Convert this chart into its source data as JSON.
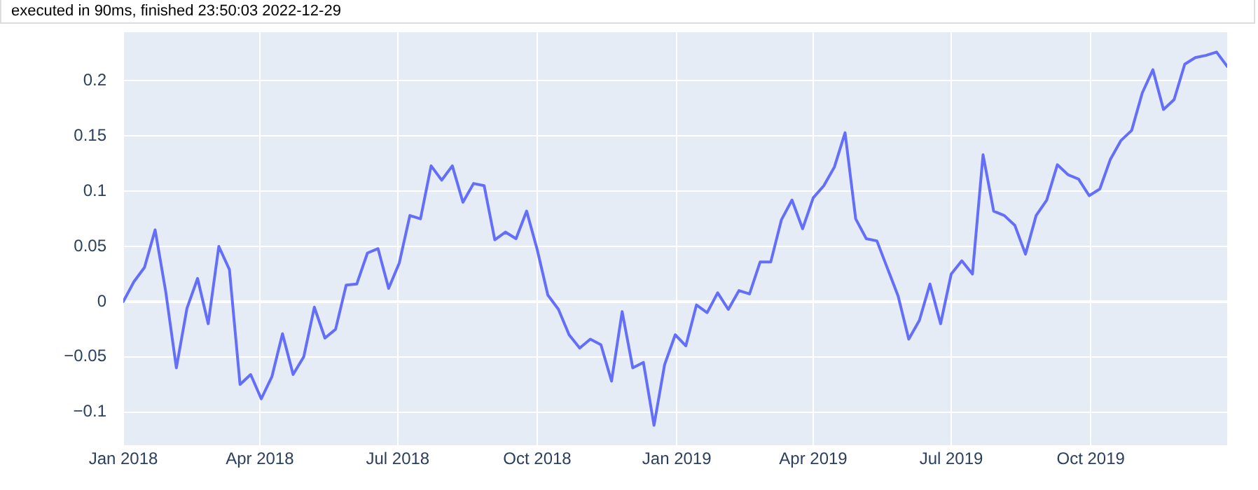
{
  "chart_data": {
    "type": "line",
    "annotations": [
      "executed in 90ms, finished 23:50:03 2022-12-29"
    ],
    "x": [
      "2018-01-01",
      "2018-01-08",
      "2018-01-15",
      "2018-01-22",
      "2018-01-29",
      "2018-02-05",
      "2018-02-12",
      "2018-02-19",
      "2018-02-26",
      "2018-03-05",
      "2018-03-12",
      "2018-03-19",
      "2018-03-26",
      "2018-04-02",
      "2018-04-09",
      "2018-04-16",
      "2018-04-23",
      "2018-04-30",
      "2018-05-07",
      "2018-05-14",
      "2018-05-21",
      "2018-05-28",
      "2018-06-04",
      "2018-06-11",
      "2018-06-18",
      "2018-06-25",
      "2018-07-02",
      "2018-07-09",
      "2018-07-16",
      "2018-07-23",
      "2018-07-30",
      "2018-08-06",
      "2018-08-13",
      "2018-08-20",
      "2018-08-27",
      "2018-09-03",
      "2018-09-10",
      "2018-09-17",
      "2018-09-24",
      "2018-10-01",
      "2018-10-08",
      "2018-10-15",
      "2018-10-22",
      "2018-10-29",
      "2018-11-05",
      "2018-11-12",
      "2018-11-19",
      "2018-11-26",
      "2018-12-03",
      "2018-12-10",
      "2018-12-17",
      "2018-12-24",
      "2018-12-31",
      "2019-01-07",
      "2019-01-14",
      "2019-01-21",
      "2019-01-28",
      "2019-02-04",
      "2019-02-11",
      "2019-02-18",
      "2019-02-25",
      "2019-03-04",
      "2019-03-11",
      "2019-03-18",
      "2019-03-25",
      "2019-04-01",
      "2019-04-08",
      "2019-04-15",
      "2019-04-22",
      "2019-04-29",
      "2019-05-06",
      "2019-05-13",
      "2019-05-20",
      "2019-05-27",
      "2019-06-03",
      "2019-06-10",
      "2019-06-17",
      "2019-06-24",
      "2019-07-01",
      "2019-07-08",
      "2019-07-15",
      "2019-07-22",
      "2019-07-29",
      "2019-08-05",
      "2019-08-12",
      "2019-08-19",
      "2019-08-26",
      "2019-09-02",
      "2019-09-09",
      "2019-09-16",
      "2019-09-23",
      "2019-09-30",
      "2019-10-07",
      "2019-10-14",
      "2019-10-21",
      "2019-10-28",
      "2019-11-04",
      "2019-11-11",
      "2019-11-18",
      "2019-11-25",
      "2019-12-02",
      "2019-12-09",
      "2019-12-16",
      "2019-12-23",
      "2019-12-30"
    ],
    "series": [
      {
        "color": "#636efa",
        "values": [
          0,
          0.018,
          0.031,
          0.065,
          0.009,
          -0.06,
          -0.006,
          0.021,
          -0.02,
          0.05,
          0.029,
          -0.075,
          -0.066,
          -0.088,
          -0.068,
          -0.029,
          -0.066,
          -0.05,
          -0.005,
          -0.033,
          -0.025,
          0.015,
          0.016,
          0.044,
          0.048,
          0.012,
          0.035,
          0.078,
          0.075,
          0.123,
          0.11,
          0.123,
          0.09,
          0.107,
          0.105,
          0.056,
          0.063,
          0.057,
          0.082,
          0.047,
          0.006,
          -0.007,
          -0.03,
          -0.042,
          -0.034,
          -0.039,
          -0.072,
          -0.009,
          -0.06,
          -0.055,
          -0.112,
          -0.057,
          -0.03,
          -0.04,
          -0.003,
          -0.01,
          0.008,
          -0.007,
          0.01,
          0.007,
          0.036,
          0.036,
          0.074,
          0.092,
          0.066,
          0.094,
          0.105,
          0.122,
          0.153,
          0.075,
          0.057,
          0.055,
          0.03,
          0.005,
          -0.034,
          -0.017,
          0.016,
          -0.02,
          0.025,
          0.037,
          0.025,
          0.133,
          0.082,
          0.078,
          0.069,
          0.043,
          0.078,
          0.092,
          0.124,
          0.115,
          0.111,
          0.096,
          0.102,
          0.129,
          0.146,
          0.155,
          0.189,
          0.21,
          0.174,
          0.183,
          0.215,
          0.221,
          0.223,
          0.226,
          0.213
        ]
      }
    ],
    "xlim": [
      "2018-01-01",
      "2019-12-30"
    ],
    "xticks": [
      {
        "value": "2018-01-01",
        "label": "Jan 2018"
      },
      {
        "value": "2018-04-01",
        "label": "Apr 2018"
      },
      {
        "value": "2018-07-01",
        "label": "Jul 2018"
      },
      {
        "value": "2018-10-01",
        "label": "Oct 2018"
      },
      {
        "value": "2019-01-01",
        "label": "Jan 2019"
      },
      {
        "value": "2019-04-01",
        "label": "Apr 2019"
      },
      {
        "value": "2019-07-01",
        "label": "Jul 2019"
      },
      {
        "value": "2019-10-01",
        "label": "Oct 2019"
      }
    ],
    "ylim": [
      -0.13,
      0.244
    ],
    "yticks": [
      {
        "value": -0.1,
        "label": "−0.1"
      },
      {
        "value": -0.05,
        "label": "−0.05"
      },
      0,
      0.05,
      0.1,
      0.15,
      0.2
    ],
    "grid": true,
    "marker": "none",
    "line_style": "solid",
    "legend": false
  }
}
